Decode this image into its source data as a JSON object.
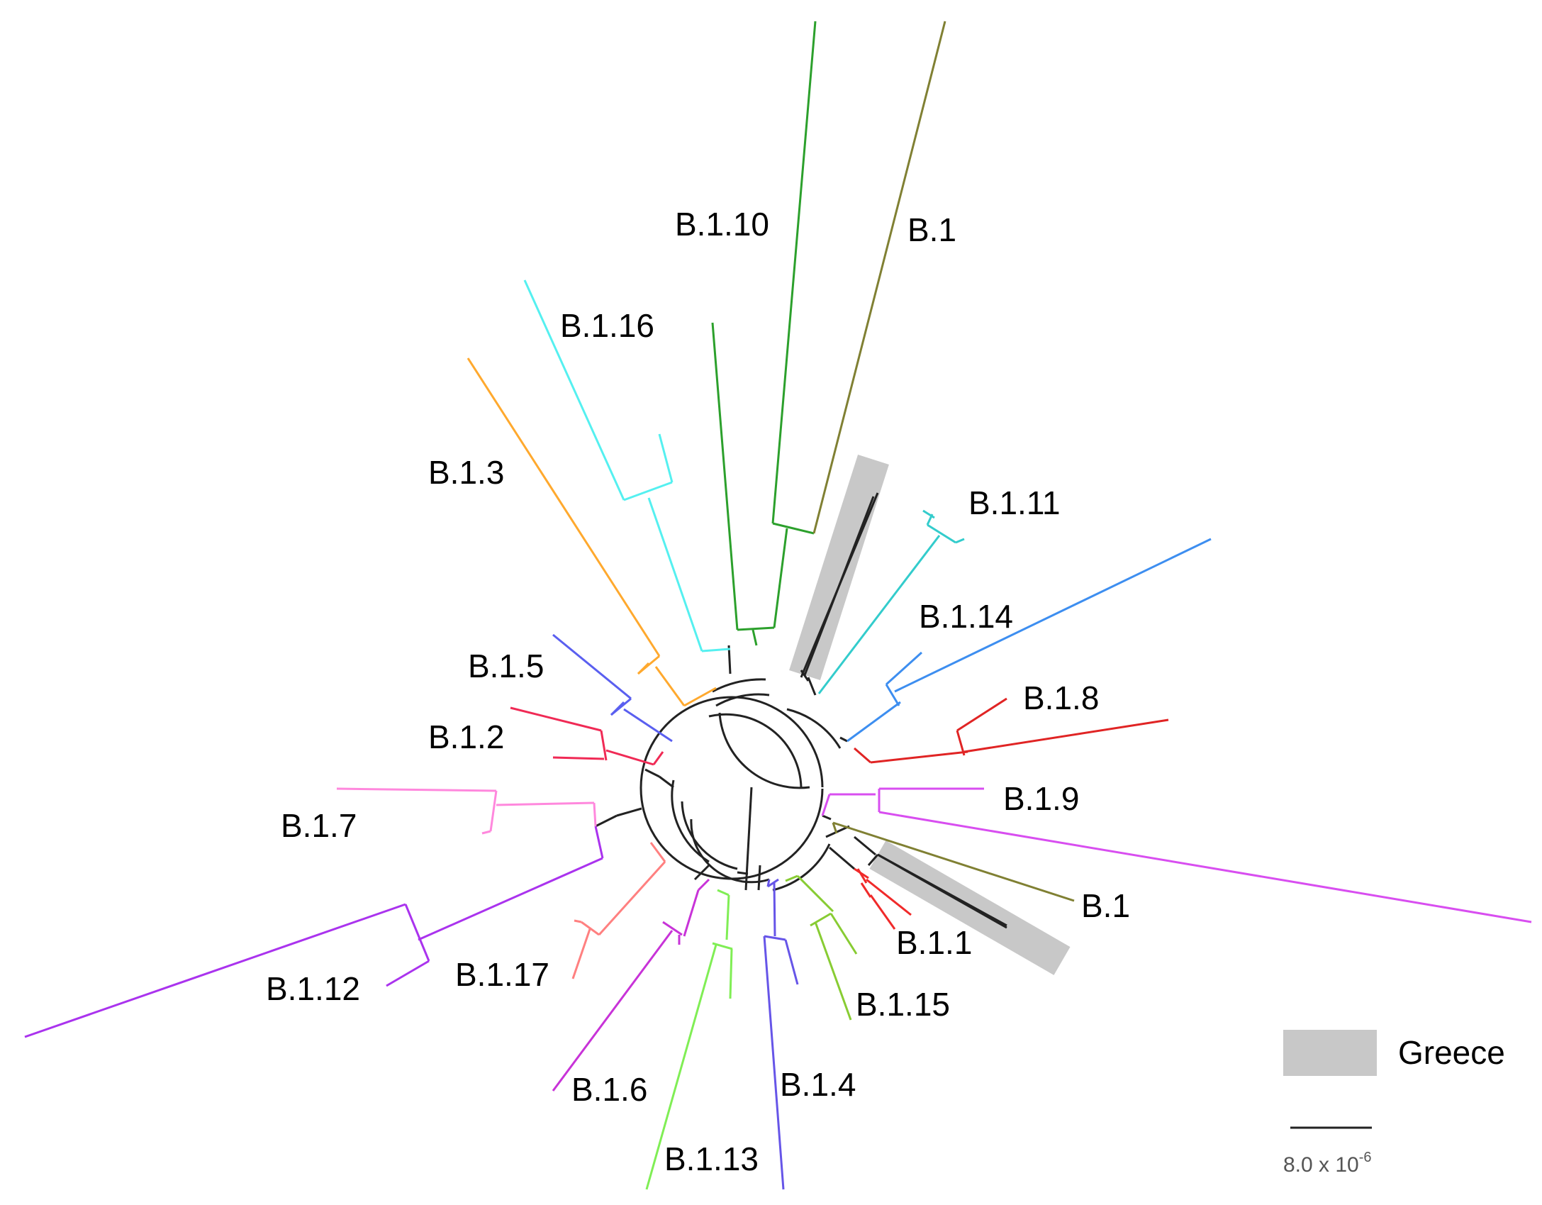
{
  "figure": {
    "labels": {
      "b110": "B.1.10",
      "b1_top": "B.1",
      "b116": "B.1.16",
      "b13": "B.1.3",
      "b111": "B.1.11",
      "b114": "B.1.14",
      "b15": "B.1.5",
      "b18": "B.1.8",
      "b12": "B.1.2",
      "b19": "B.1.9",
      "b17": "B.1.7",
      "b1_bottom": "B.1",
      "b11": "B.1.1",
      "b117": "B.1.17",
      "b112": "B.1.12",
      "b115": "B.1.15",
      "b16": "B.1.6",
      "b14": "B.1.4",
      "b113": "B.1.13"
    },
    "legend": {
      "label": "Greece",
      "color": "#c8c8c8"
    },
    "scale_bar": {
      "label": "8.0 x 10",
      "exponent": "-6"
    },
    "colors": {
      "b110": "#2ca02c",
      "b1": "#808033",
      "b116": "#55f0f0",
      "b13": "#ffa92e",
      "b111": "#33cccc",
      "b114": "#3d8ef0",
      "b15": "#5a5ff0",
      "b18": "#e02424",
      "b12": "#f02a55",
      "b19": "#d84ef0",
      "b17": "#ff88dd",
      "b11": "#f02a2a",
      "b117": "#ff8080",
      "b112": "#aa33ee",
      "b115": "#88cc33",
      "b16": "#c833d8",
      "b14": "#6655e8",
      "b113": "#80ee55",
      "backbone": "#222222"
    }
  }
}
